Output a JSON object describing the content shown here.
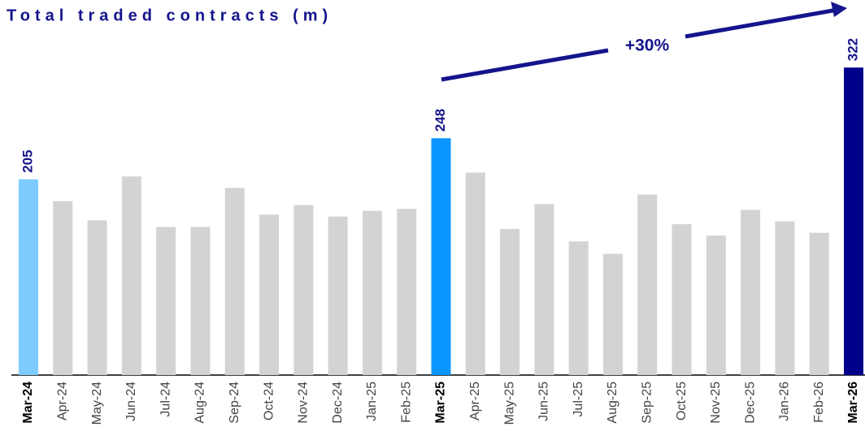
{
  "chart_data": {
    "type": "bar",
    "title": "Total traded contracts (m)",
    "categories": [
      "Mar-24",
      "Apr-24",
      "May-24",
      "Jun-24",
      "Jul-24",
      "Aug-24",
      "Sep-24",
      "Oct-24",
      "Nov-24",
      "Dec-24",
      "Jan-25",
      "Feb-25",
      "Mar-25",
      "Apr-25",
      "May-25",
      "Jun-25",
      "Jul-25",
      "Aug-25",
      "Sep-25",
      "Oct-25",
      "Nov-25",
      "Dec-25",
      "Jan-26",
      "Feb-26",
      "Mar-26"
    ],
    "values": [
      205,
      182,
      162,
      208,
      155,
      155,
      196,
      168,
      178,
      166,
      172,
      174,
      248,
      212,
      153,
      179,
      140,
      127,
      189,
      158,
      146,
      173,
      161,
      149,
      322
    ],
    "color": "#d3d3d3",
    "colors": [
      "#7ecbff",
      "#d3d3d3",
      "#d3d3d3",
      "#d3d3d3",
      "#d3d3d3",
      "#d3d3d3",
      "#d3d3d3",
      "#d3d3d3",
      "#d3d3d3",
      "#d3d3d3",
      "#d3d3d3",
      "#d3d3d3",
      "#0b96ff",
      "#d3d3d3",
      "#d3d3d3",
      "#d3d3d3",
      "#d3d3d3",
      "#d3d3d3",
      "#d3d3d3",
      "#d3d3d3",
      "#d3d3d3",
      "#d3d3d3",
      "#d3d3d3",
      "#d3d3d3",
      "#00008b"
    ],
    "ylim": [
      0,
      380
    ],
    "annotation": "+30%"
  }
}
